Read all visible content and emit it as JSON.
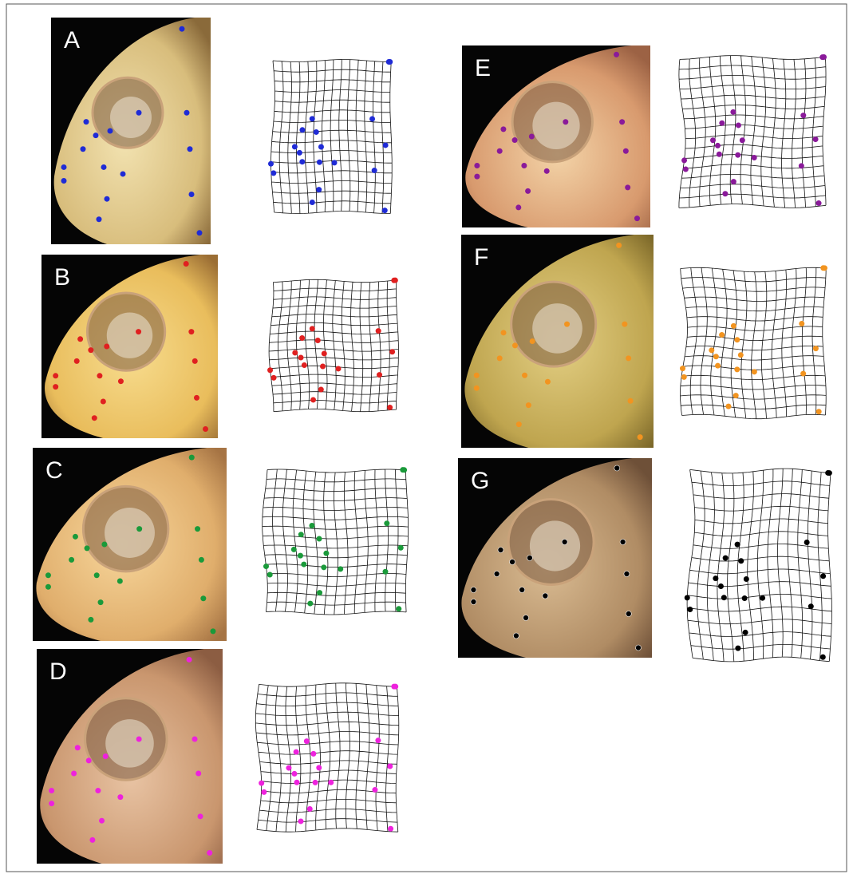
{
  "panels": [
    {
      "label": "A"
    },
    {
      "label": "B"
    },
    {
      "label": "C"
    },
    {
      "label": "D"
    },
    {
      "label": "E"
    },
    {
      "label": "F"
    },
    {
      "label": "G"
    }
  ]
}
